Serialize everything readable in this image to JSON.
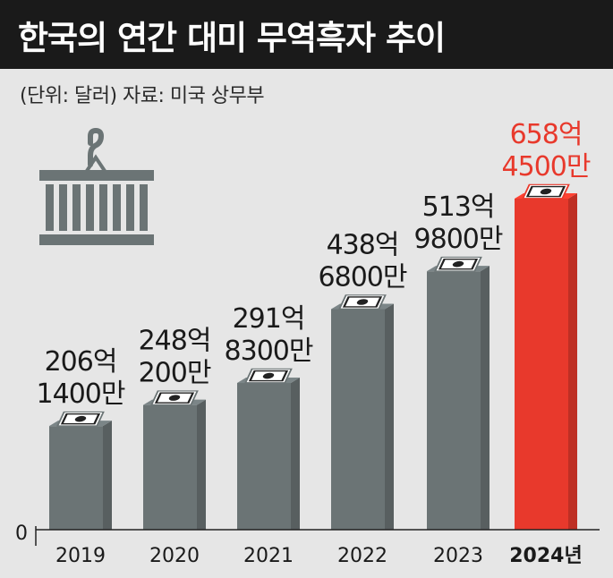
{
  "header": {
    "title": "한국의 연간 대미 무역흑자 추이",
    "subtitle": "(단위: 달러) 자료: 미국 상무부"
  },
  "colors": {
    "background": "#e6e6e6",
    "title_bg": "#1a1a1a",
    "bar": "#6b7475",
    "bar_highlight": "#e8392c",
    "label": "#1a1a1a",
    "label_highlight": "#e8392c",
    "icon": "#6b7475"
  },
  "icons": [
    "container-crane-icon",
    "money-bill-icon"
  ],
  "chart_data": {
    "type": "bar",
    "categories": [
      "2019",
      "2020",
      "2021",
      "2022",
      "2023",
      "2024년"
    ],
    "values": [
      206.14,
      248.02,
      291.83,
      438.68,
      513.98,
      658.45
    ],
    "value_unit": "억 달러",
    "data_labels": [
      [
        "206억",
        "1400만"
      ],
      [
        "248억",
        "200만"
      ],
      [
        "291억",
        "8300만"
      ],
      [
        "438억",
        "6800만"
      ],
      [
        "513억",
        "9800만"
      ],
      [
        "658억",
        "4500만"
      ]
    ],
    "highlight_index": 5,
    "y_tick_labels": [
      "0"
    ],
    "ylim": [
      0,
      700
    ],
    "grid": false,
    "legend": "none"
  }
}
